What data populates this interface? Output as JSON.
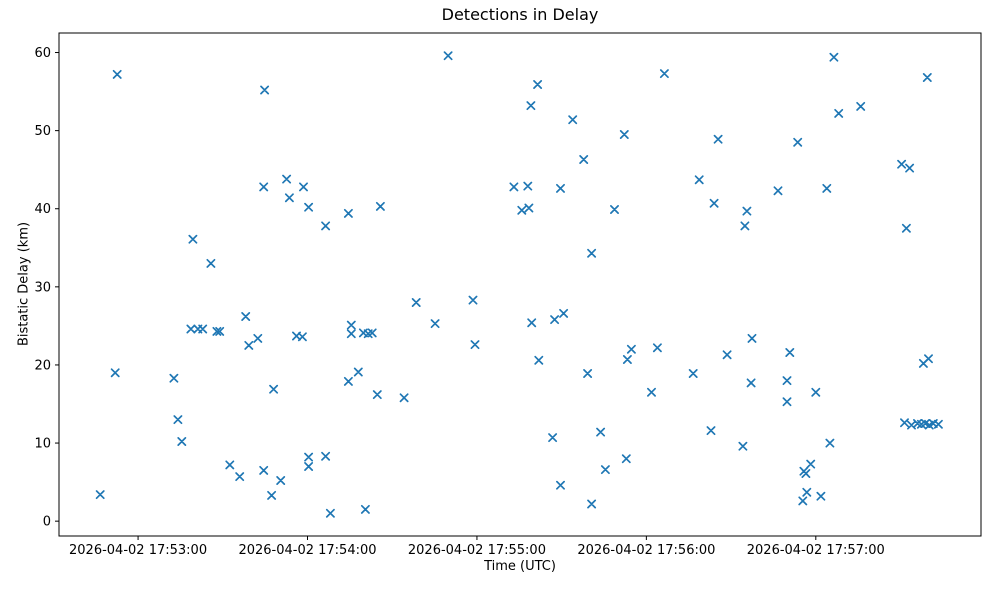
{
  "figure": {
    "title": "Detections in Delay",
    "xlabel": "Time (UTC)",
    "ylabel": "Bistatic Delay (km)"
  },
  "chart_data": {
    "type": "scatter",
    "title": "Detections in Delay",
    "xlabel": "Time (UTC)",
    "ylabel": "Bistatic Delay (km)",
    "grid": false,
    "legend": null,
    "marker": {
      "style": "x",
      "color": "#1f77b4"
    },
    "x_encoding": "seconds after 2026-04-02 17:53:00",
    "xlim": [
      -28,
      298.5
    ],
    "ylim": [
      -1.9,
      62.5
    ],
    "x_ticks": {
      "values": [
        0,
        60,
        120,
        180,
        240
      ],
      "labels": [
        "2026-04-02 17:53:00",
        "2026-04-02 17:54:00",
        "2026-04-02 17:55:00",
        "2026-04-02 17:56:00",
        "2026-04-02 17:57:00"
      ]
    },
    "y_ticks": {
      "values": [
        0,
        10,
        20,
        30,
        40,
        50,
        60
      ],
      "labels": [
        "0",
        "10",
        "20",
        "30",
        "40",
        "50",
        "60"
      ]
    },
    "points": [
      [
        -13.4,
        3.4
      ],
      [
        -8.1,
        19.0
      ],
      [
        -7.4,
        57.2
      ],
      [
        12.7,
        18.3
      ],
      [
        14.1,
        13.0
      ],
      [
        15.5,
        10.2
      ],
      [
        18.7,
        24.6
      ],
      [
        19.4,
        36.1
      ],
      [
        21.2,
        24.6
      ],
      [
        22.9,
        24.6
      ],
      [
        25.8,
        33.0
      ],
      [
        27.9,
        24.3
      ],
      [
        28.9,
        24.3
      ],
      [
        32.5,
        7.2
      ],
      [
        36.0,
        5.7
      ],
      [
        38.1,
        26.2
      ],
      [
        39.2,
        22.5
      ],
      [
        42.4,
        23.4
      ],
      [
        44.5,
        42.8
      ],
      [
        44.5,
        6.5
      ],
      [
        44.8,
        55.2
      ],
      [
        47.3,
        3.3
      ],
      [
        48.0,
        16.9
      ],
      [
        50.5,
        5.2
      ],
      [
        52.6,
        43.8
      ],
      [
        53.6,
        41.4
      ],
      [
        56.1,
        23.7
      ],
      [
        58.2,
        23.6
      ],
      [
        58.6,
        42.8
      ],
      [
        60.4,
        40.2
      ],
      [
        60.4,
        8.2
      ],
      [
        60.4,
        7.0
      ],
      [
        66.4,
        37.8
      ],
      [
        66.4,
        8.3
      ],
      [
        68.1,
        1.0
      ],
      [
        74.5,
        39.4
      ],
      [
        74.5,
        17.9
      ],
      [
        75.5,
        25.1
      ],
      [
        75.5,
        24.0
      ],
      [
        78.0,
        19.1
      ],
      [
        79.8,
        24.1
      ],
      [
        80.5,
        1.5
      ],
      [
        81.5,
        24.0
      ],
      [
        82.9,
        24.1
      ],
      [
        84.7,
        16.2
      ],
      [
        85.8,
        40.3
      ],
      [
        94.2,
        15.8
      ],
      [
        98.5,
        28.0
      ],
      [
        105.2,
        25.3
      ],
      [
        109.8,
        59.6
      ],
      [
        118.6,
        28.3
      ],
      [
        119.3,
        22.6
      ],
      [
        133.1,
        42.8
      ],
      [
        135.9,
        39.8
      ],
      [
        138.0,
        42.9
      ],
      [
        138.4,
        40.1
      ],
      [
        139.1,
        53.2
      ],
      [
        139.4,
        25.4
      ],
      [
        141.5,
        55.9
      ],
      [
        141.9,
        20.6
      ],
      [
        146.8,
        10.7
      ],
      [
        147.5,
        25.8
      ],
      [
        149.6,
        42.6
      ],
      [
        149.6,
        4.6
      ],
      [
        150.7,
        26.6
      ],
      [
        153.9,
        51.4
      ],
      [
        157.8,
        46.3
      ],
      [
        159.2,
        18.9
      ],
      [
        160.6,
        34.3
      ],
      [
        160.6,
        2.2
      ],
      [
        163.8,
        11.4
      ],
      [
        165.5,
        6.6
      ],
      [
        168.7,
        39.9
      ],
      [
        172.2,
        49.5
      ],
      [
        172.9,
        8.0
      ],
      [
        173.3,
        20.7
      ],
      [
        174.7,
        22.0
      ],
      [
        181.8,
        16.5
      ],
      [
        183.9,
        22.2
      ],
      [
        186.4,
        57.3
      ],
      [
        196.6,
        18.9
      ],
      [
        198.7,
        43.7
      ],
      [
        202.9,
        11.6
      ],
      [
        204.0,
        40.7
      ],
      [
        205.4,
        48.9
      ],
      [
        208.6,
        21.3
      ],
      [
        214.2,
        9.6
      ],
      [
        214.9,
        37.8
      ],
      [
        215.6,
        39.7
      ],
      [
        217.1,
        17.7
      ],
      [
        217.4,
        23.4
      ],
      [
        226.6,
        42.3
      ],
      [
        229.8,
        18.0
      ],
      [
        229.8,
        15.3
      ],
      [
        230.8,
        21.6
      ],
      [
        233.6,
        48.5
      ],
      [
        235.4,
        2.6
      ],
      [
        235.8,
        6.4
      ],
      [
        236.5,
        6.1
      ],
      [
        236.8,
        3.7
      ],
      [
        238.2,
        7.3
      ],
      [
        240.0,
        16.5
      ],
      [
        241.8,
        3.2
      ],
      [
        243.9,
        42.6
      ],
      [
        245.0,
        10.0
      ],
      [
        246.4,
        59.4
      ],
      [
        248.1,
        52.2
      ],
      [
        255.9,
        53.1
      ],
      [
        270.4,
        45.7
      ],
      [
        271.4,
        12.6
      ],
      [
        272.1,
        37.5
      ],
      [
        273.2,
        45.2
      ],
      [
        273.9,
        12.3
      ],
      [
        276.0,
        12.5
      ],
      [
        277.4,
        12.4
      ],
      [
        278.1,
        20.2
      ],
      [
        278.8,
        12.5
      ],
      [
        279.5,
        56.8
      ],
      [
        279.9,
        20.8
      ],
      [
        280.2,
        12.3
      ],
      [
        281.6,
        12.5
      ],
      [
        283.4,
        12.4
      ]
    ]
  }
}
